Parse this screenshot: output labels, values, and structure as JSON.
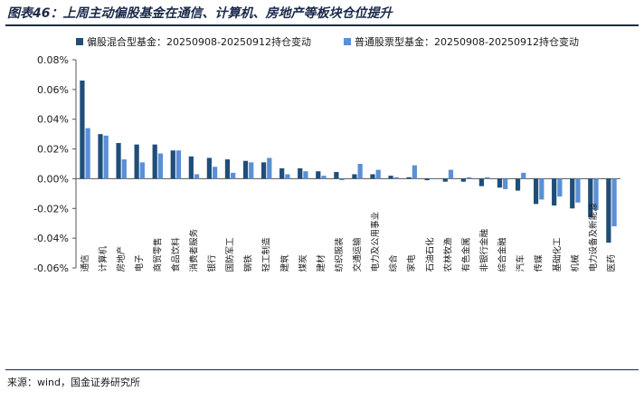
{
  "header": {
    "title": "图表46：上周主动偏股基金在通信、计算机、房地产等板块仓位提升"
  },
  "footer": {
    "source": "来源：wind，国金证券研究所"
  },
  "colors": {
    "series1": "#1f4e79",
    "series2": "#5b8fd6",
    "title": "#1b2a4a"
  },
  "chart_data": {
    "type": "bar",
    "categories": [
      "通信",
      "计算机",
      "房地产",
      "电子",
      "商贸零售",
      "食品饮料",
      "消费者服务",
      "银行",
      "国防军工",
      "钢铁",
      "轻工制造",
      "建筑",
      "煤炭",
      "建材",
      "纺织服装",
      "交通运输",
      "电力及公用事业",
      "综合",
      "家电",
      "石油石化",
      "农林牧渔",
      "有色金属",
      "非银行金融",
      "综合金融",
      "汽车",
      "传媒",
      "基础化工",
      "机械",
      "电力设备及新能源",
      "医药"
    ],
    "series": [
      {
        "name": "偏股混合型基金：20250908-20250912持仓变动",
        "values": [
          0.066,
          0.03,
          0.024,
          0.023,
          0.023,
          0.019,
          0.015,
          0.014,
          0.013,
          0.012,
          0.011,
          0.007,
          0.007,
          0.005,
          0.0045,
          0.003,
          0.003,
          0.002,
          0.001,
          -0.001,
          -0.002,
          -0.002,
          -0.005,
          -0.006,
          -0.008,
          -0.017,
          -0.018,
          -0.02,
          -0.026,
          -0.043
        ]
      },
      {
        "name": "普通股票型基金：20250908-20250912持仓变动",
        "values": [
          0.034,
          0.029,
          0.013,
          0.011,
          0.017,
          0.019,
          0.003,
          0.008,
          0.004,
          0.011,
          0.014,
          0.003,
          0.005,
          0.002,
          -0.001,
          0.01,
          0.006,
          0.001,
          0.009,
          0.0,
          0.006,
          0.001,
          0.001,
          -0.007,
          0.004,
          -0.014,
          -0.012,
          -0.016,
          -0.021,
          -0.032
        ]
      }
    ],
    "yticks": [
      "0.08%",
      "0.06%",
      "0.04%",
      "0.02%",
      "0.00%",
      "-0.02%",
      "-0.04%",
      "-0.06%"
    ],
    "ylim": [
      -0.06,
      0.08
    ],
    "legend_position": "top-left",
    "grid": false,
    "xlabel": "",
    "ylabel": ""
  }
}
